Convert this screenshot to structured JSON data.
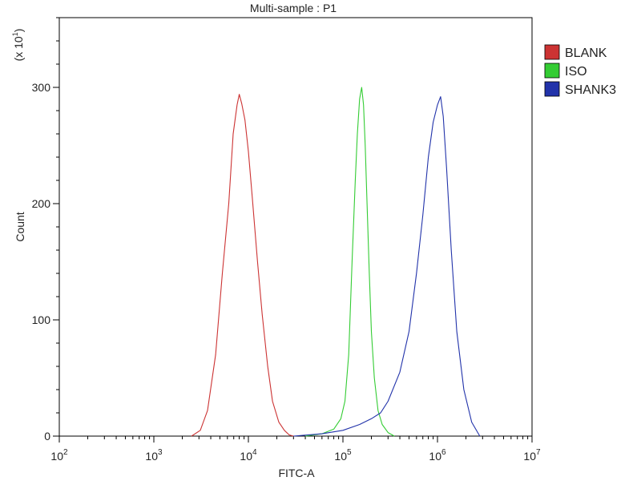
{
  "chart_data": {
    "type": "line",
    "title": "Multi-sample : P1",
    "xlabel": "FITC-A",
    "ylabel": "Count",
    "y_multiplier_label": "(x 10",
    "y_multiplier_exp": "1",
    "y_multiplier_close": ")",
    "x_scale": "log",
    "xlim": [
      100,
      10000000
    ],
    "ylim": [
      0,
      360
    ],
    "x_ticks": [
      {
        "base": "10",
        "exp": "2"
      },
      {
        "base": "10",
        "exp": "3"
      },
      {
        "base": "10",
        "exp": "4"
      },
      {
        "base": "10",
        "exp": "5"
      },
      {
        "base": "10",
        "exp": "6"
      },
      {
        "base": "10",
        "exp": "7"
      }
    ],
    "y_ticks": [
      "0",
      "100",
      "200",
      "300"
    ],
    "y_tick_values": [
      0,
      100,
      200,
      300
    ],
    "grid": false,
    "legend_position": "top-right",
    "series": [
      {
        "name": "BLANK",
        "color": "#cc3333",
        "x": [
          2500,
          3100,
          3700,
          4500,
          5300,
          6200,
          6900,
          7600,
          8000,
          8500,
          9200,
          10000,
          11000,
          12500,
          14000,
          16000,
          18000,
          21000,
          24000,
          27000,
          30000
        ],
        "y": [
          0,
          5,
          22,
          70,
          140,
          200,
          260,
          285,
          294,
          286,
          272,
          245,
          205,
          150,
          105,
          60,
          30,
          12,
          5,
          1,
          0
        ]
      },
      {
        "name": "ISO",
        "color": "#33cc33",
        "x": [
          40000,
          60000,
          80000,
          95000,
          105000,
          115000,
          125000,
          135000,
          142000,
          150000,
          158000,
          165000,
          172000,
          180000,
          190000,
          200000,
          215000,
          235000,
          260000,
          300000,
          350000
        ],
        "y": [
          0,
          2,
          6,
          15,
          30,
          70,
          150,
          220,
          260,
          290,
          300,
          285,
          250,
          200,
          140,
          90,
          50,
          22,
          10,
          3,
          0
        ]
      },
      {
        "name": "SHANK3",
        "color": "#2233aa",
        "x": [
          30000,
          60000,
          100000,
          150000,
          200000,
          250000,
          300000,
          400000,
          500000,
          600000,
          700000,
          800000,
          900000,
          1000000,
          1080000,
          1150000,
          1250000,
          1400000,
          1600000,
          1900000,
          2300000,
          2800000
        ],
        "y": [
          0,
          2,
          5,
          10,
          15,
          20,
          30,
          55,
          90,
          140,
          190,
          240,
          270,
          285,
          292,
          275,
          230,
          160,
          90,
          40,
          12,
          0
        ]
      }
    ]
  }
}
